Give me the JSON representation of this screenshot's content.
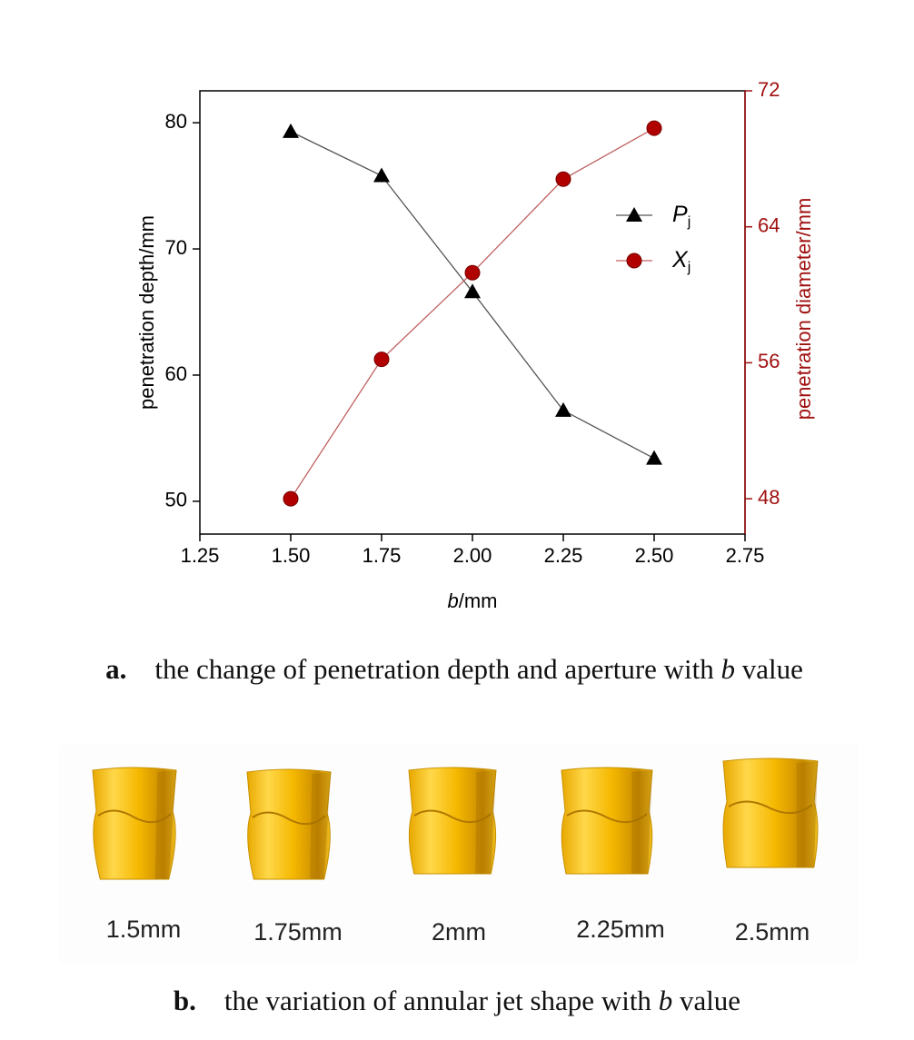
{
  "chart_data": {
    "type": "line",
    "x_label": "b/mm",
    "y_label": "penetration depth/mm",
    "y2_label": "penetration diameter/mm",
    "x": [
      1.5,
      1.75,
      2.0,
      2.25,
      2.5
    ],
    "xlim": [
      1.25,
      2.75
    ],
    "xticks": [
      1.25,
      {
        "value": 1.5,
        "label": "1.50"
      },
      1.75,
      {
        "value": 2.0,
        "label": "2.00"
      },
      2.25,
      {
        "value": 2.5,
        "label": "2.50"
      },
      2.75
    ],
    "ylim": [
      47.4,
      82.53
    ],
    "yticks": [
      50,
      60,
      70,
      80
    ],
    "y2lim": [
      45.92,
      72
    ],
    "y2ticks": [
      48,
      56,
      64,
      72
    ],
    "y2_color": "#a01010",
    "series": [
      {
        "name": "Pj",
        "color": "#000000",
        "line_color": "#555555",
        "marker": "triangle",
        "values": [
          79.3,
          75.8,
          66.6,
          57.2,
          53.4
        ]
      },
      {
        "name": "Xj",
        "color": "#b00000",
        "line_color": "#c06060",
        "marker": "circle",
        "axis": "y2",
        "values": [
          48.0,
          56.2,
          61.3,
          66.8,
          69.8
        ]
      }
    ]
  },
  "caption_a": {
    "label": "a.",
    "parts": [
      "the change of penetration depth and aperture with ",
      "b",
      " value"
    ]
  },
  "jet_shapes": {
    "labels": [
      "1.5mm",
      "1.75mm",
      "2mm",
      "2.25mm",
      "2.5mm"
    ]
  },
  "caption_b": {
    "label": "b.",
    "parts": [
      "the variation of annular jet shape with ",
      "b",
      " value"
    ]
  }
}
